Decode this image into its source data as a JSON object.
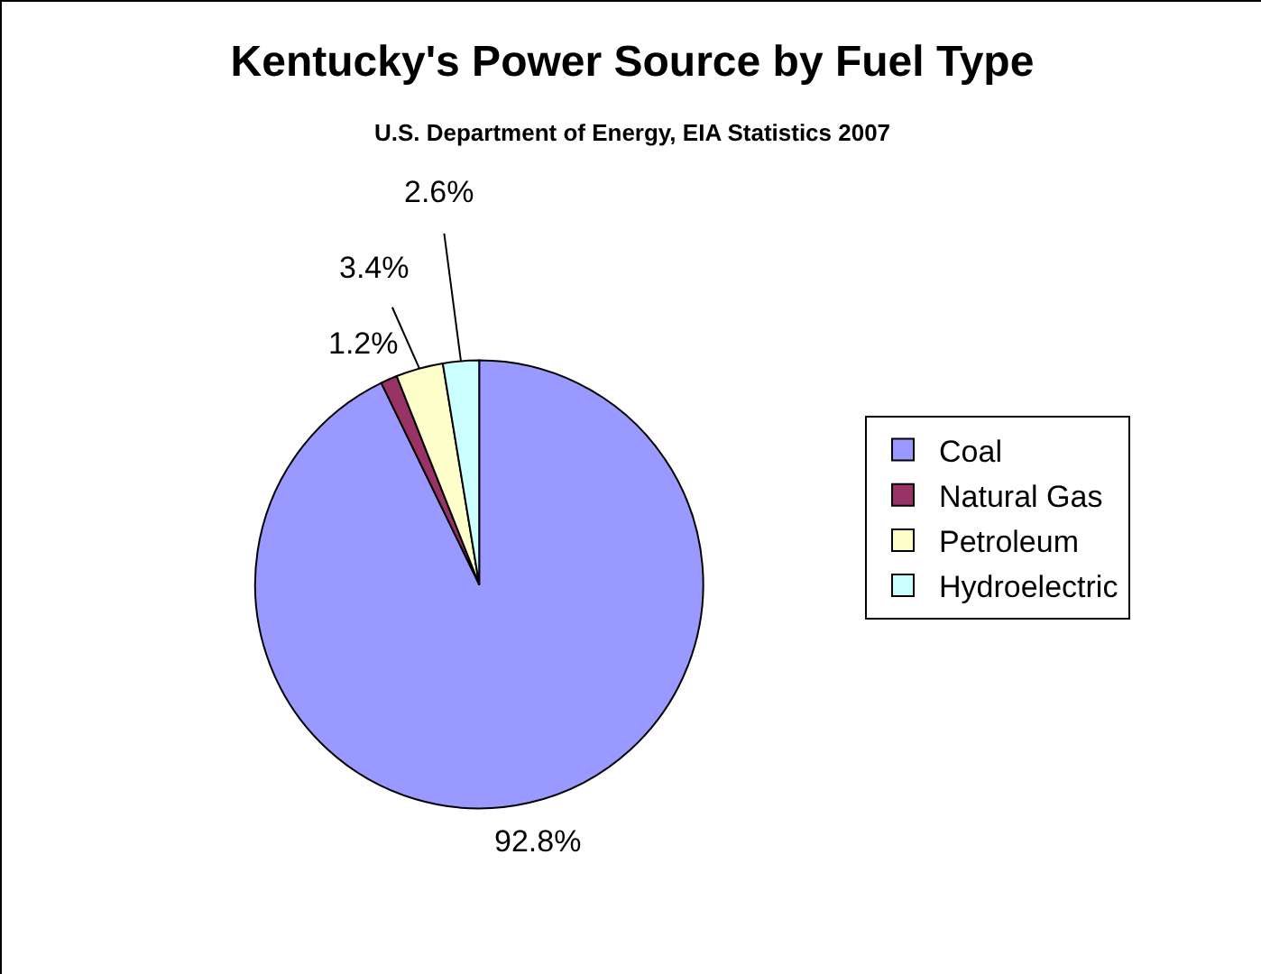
{
  "chart_data": {
    "type": "pie",
    "title": "Kentucky's Power Source by Fuel Type",
    "subtitle": "U.S. Department of Energy, EIA Statistics 2007",
    "categories": [
      "Coal",
      "Natural Gas",
      "Petroleum",
      "Hydroelectric"
    ],
    "values": [
      92.8,
      1.2,
      3.4,
      2.6
    ],
    "colors": [
      "#9999ff",
      "#993366",
      "#ffffcc",
      "#ccffff"
    ],
    "value_labels": [
      "92.8%",
      "1.2%",
      "3.4%",
      "2.6%"
    ],
    "legend": "right"
  }
}
